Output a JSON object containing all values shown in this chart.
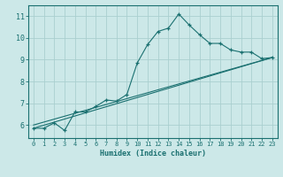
{
  "title": "",
  "xlabel": "Humidex (Indice chaleur)",
  "ylabel": "",
  "bg_color": "#cce8e8",
  "line_color": "#1a7070",
  "grid_color": "#aacfcf",
  "xlim": [
    -0.5,
    23.5
  ],
  "ylim": [
    5.4,
    11.5
  ],
  "xticks": [
    0,
    1,
    2,
    3,
    4,
    5,
    6,
    7,
    8,
    9,
    10,
    11,
    12,
    13,
    14,
    15,
    16,
    17,
    18,
    19,
    20,
    21,
    22,
    23
  ],
  "yticks": [
    6,
    7,
    8,
    9,
    10,
    11
  ],
  "line1": {
    "x": [
      0,
      1,
      2,
      3,
      4,
      5,
      6,
      7,
      8,
      9,
      10,
      11,
      12,
      13,
      14,
      15,
      16,
      17,
      18,
      19,
      20,
      21,
      22,
      23
    ],
    "y": [
      5.85,
      5.85,
      6.1,
      5.75,
      6.6,
      6.6,
      6.85,
      7.15,
      7.1,
      7.4,
      8.85,
      9.7,
      10.3,
      10.45,
      11.1,
      10.6,
      10.15,
      9.75,
      9.75,
      9.45,
      9.35,
      9.35,
      9.05,
      9.1
    ]
  },
  "line2": {
    "x": [
      0,
      23
    ],
    "y": [
      5.85,
      9.1
    ]
  },
  "line3": {
    "x": [
      0,
      23
    ],
    "y": [
      6.0,
      9.1
    ]
  }
}
